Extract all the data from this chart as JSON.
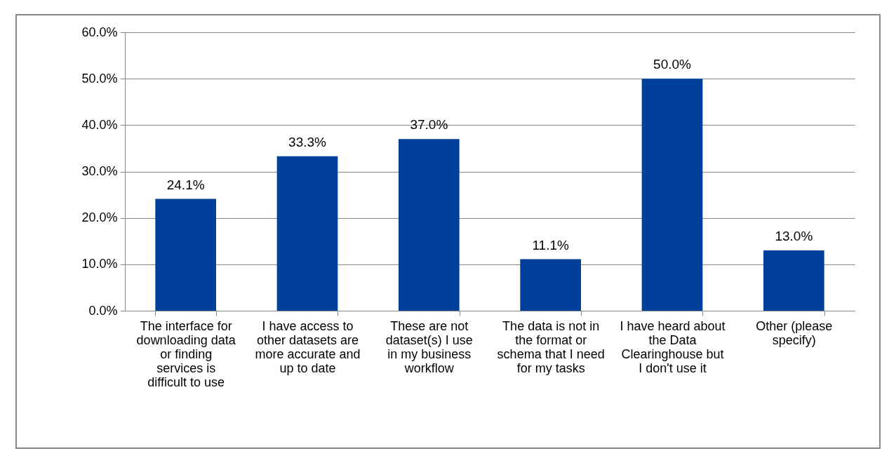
{
  "chart_data": {
    "type": "bar",
    "categories": [
      "The interface for downloading data or finding services is difficult to use",
      "I have access to other datasets are more accurate and up to date",
      "These are not dataset(s) I use in my business workflow",
      "The data is not in the format or schema that I need for my tasks",
      "I have heard about the Data Clearinghouse but I don't use it",
      "Other (please specify)"
    ],
    "values": [
      24.1,
      33.3,
      37.0,
      11.1,
      50.0,
      13.0
    ],
    "value_labels": [
      "24.1%",
      "33.3%",
      "37.0%",
      "11.1%",
      "50.0%",
      "13.0%"
    ],
    "color": "#003f9a",
    "ylim": [
      0,
      60
    ],
    "yticks": [
      {
        "value": 0,
        "label": "0.0%"
      },
      {
        "value": 10,
        "label": "10.0%"
      },
      {
        "value": 20,
        "label": "20.0%"
      },
      {
        "value": 30,
        "label": "30.0%"
      },
      {
        "value": 40,
        "label": "40.0%"
      },
      {
        "value": 50,
        "label": "50.0%"
      },
      {
        "value": 60,
        "label": "60.0%"
      }
    ],
    "grid": "y"
  }
}
